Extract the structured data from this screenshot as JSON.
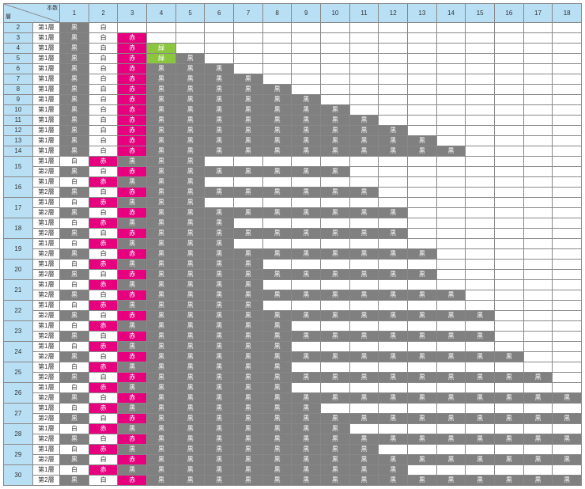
{
  "headers": {
    "corner_top": "本数",
    "corner_bottom": "層",
    "left": "線心数",
    "numbers": [
      "1",
      "2",
      "3",
      "4",
      "5",
      "6",
      "7",
      "8",
      "9",
      "10",
      "11",
      "12",
      "13",
      "14",
      "15",
      "16",
      "17",
      "18"
    ]
  },
  "legend": {
    "黒": {
      "bg": "#808080",
      "fg": "#ffffff"
    },
    "白": {
      "bg": "#ffffff",
      "fg": "#333333"
    },
    "赤": {
      "bg": "#e6007e",
      "fg": "#ffffff"
    },
    "緑": {
      "bg": "#8cc63f",
      "fg": "#ffffff"
    }
  },
  "layer_label_1": "第1層",
  "layer_label_2": "第2層",
  "groups": [
    {
      "id": "2",
      "rows": [
        {
          "layer": "第1層",
          "cells": [
            "黒",
            "白"
          ]
        }
      ]
    },
    {
      "id": "3",
      "rows": [
        {
          "layer": "第1層",
          "cells": [
            "黒",
            "白",
            "赤"
          ]
        }
      ]
    },
    {
      "id": "4",
      "rows": [
        {
          "layer": "第1層",
          "cells": [
            "黒",
            "白",
            "赤",
            "緑"
          ]
        }
      ]
    },
    {
      "id": "5",
      "rows": [
        {
          "layer": "第1層",
          "cells": [
            "黒",
            "白",
            "赤",
            "緑",
            "黒"
          ]
        }
      ]
    },
    {
      "id": "6",
      "rows": [
        {
          "layer": "第1層",
          "cells": [
            "黒",
            "白",
            "赤",
            "黒",
            "黒",
            "黒"
          ]
        }
      ]
    },
    {
      "id": "7",
      "rows": [
        {
          "layer": "第1層",
          "cells": [
            "黒",
            "白",
            "赤",
            "黒",
            "黒",
            "黒",
            "黒"
          ]
        }
      ]
    },
    {
      "id": "8",
      "rows": [
        {
          "layer": "第1層",
          "cells": [
            "黒",
            "白",
            "赤",
            "黒",
            "黒",
            "黒",
            "黒",
            "黒"
          ]
        }
      ]
    },
    {
      "id": "9",
      "rows": [
        {
          "layer": "第1層",
          "cells": [
            "黒",
            "白",
            "赤",
            "黒",
            "黒",
            "黒",
            "黒",
            "黒",
            "黒"
          ]
        }
      ]
    },
    {
      "id": "10",
      "rows": [
        {
          "layer": "第1層",
          "cells": [
            "黒",
            "白",
            "赤",
            "黒",
            "黒",
            "黒",
            "黒",
            "黒",
            "黒",
            "黒"
          ]
        }
      ]
    },
    {
      "id": "11",
      "rows": [
        {
          "layer": "第1層",
          "cells": [
            "黒",
            "白",
            "赤",
            "黒",
            "黒",
            "黒",
            "黒",
            "黒",
            "黒",
            "黒",
            "黒"
          ]
        }
      ]
    },
    {
      "id": "12",
      "rows": [
        {
          "layer": "第1層",
          "cells": [
            "黒",
            "白",
            "赤",
            "黒",
            "黒",
            "黒",
            "黒",
            "黒",
            "黒",
            "黒",
            "黒",
            "黒"
          ]
        }
      ]
    },
    {
      "id": "13",
      "rows": [
        {
          "layer": "第1層",
          "cells": [
            "黒",
            "白",
            "赤",
            "黒",
            "黒",
            "黒",
            "黒",
            "黒",
            "黒",
            "黒",
            "黒",
            "黒",
            "黒"
          ]
        }
      ]
    },
    {
      "id": "14",
      "rows": [
        {
          "layer": "第1層",
          "cells": [
            "黒",
            "白",
            "赤",
            "黒",
            "黒",
            "黒",
            "黒",
            "黒",
            "黒",
            "黒",
            "黒",
            "黒",
            "黒",
            "黒"
          ]
        }
      ]
    },
    {
      "id": "15",
      "rows": [
        {
          "layer": "第1層",
          "cells": [
            "白",
            "赤",
            "黒",
            "黒",
            "黒"
          ]
        },
        {
          "layer": "第2層",
          "cells": [
            "黒",
            "白",
            "赤",
            "黒",
            "黒",
            "黒",
            "黒",
            "黒",
            "黒",
            "黒"
          ]
        }
      ]
    },
    {
      "id": "16",
      "rows": [
        {
          "layer": "第1層",
          "cells": [
            "白",
            "赤",
            "黒",
            "黒",
            "黒"
          ]
        },
        {
          "layer": "第2層",
          "cells": [
            "黒",
            "白",
            "赤",
            "黒",
            "黒",
            "黒",
            "黒",
            "黒",
            "黒",
            "黒",
            "黒"
          ]
        }
      ]
    },
    {
      "id": "17",
      "rows": [
        {
          "layer": "第1層",
          "cells": [
            "白",
            "赤",
            "黒",
            "黒",
            "黒"
          ]
        },
        {
          "layer": "第2層",
          "cells": [
            "黒",
            "白",
            "赤",
            "黒",
            "黒",
            "黒",
            "黒",
            "黒",
            "黒",
            "黒",
            "黒",
            "黒"
          ]
        }
      ]
    },
    {
      "id": "18",
      "rows": [
        {
          "layer": "第1層",
          "cells": [
            "白",
            "赤",
            "黒",
            "黒",
            "黒",
            "黒"
          ]
        },
        {
          "layer": "第2層",
          "cells": [
            "黒",
            "白",
            "赤",
            "黒",
            "黒",
            "黒",
            "黒",
            "黒",
            "黒",
            "黒",
            "黒",
            "黒"
          ]
        }
      ]
    },
    {
      "id": "19",
      "rows": [
        {
          "layer": "第1層",
          "cells": [
            "白",
            "赤",
            "黒",
            "黒",
            "黒",
            "黒"
          ]
        },
        {
          "layer": "第2層",
          "cells": [
            "黒",
            "白",
            "赤",
            "黒",
            "黒",
            "黒",
            "黒",
            "黒",
            "黒",
            "黒",
            "黒",
            "黒",
            "黒"
          ]
        }
      ]
    },
    {
      "id": "20",
      "rows": [
        {
          "layer": "第1層",
          "cells": [
            "白",
            "赤",
            "黒",
            "黒",
            "黒",
            "黒",
            "黒"
          ]
        },
        {
          "layer": "第2層",
          "cells": [
            "黒",
            "白",
            "赤",
            "黒",
            "黒",
            "黒",
            "黒",
            "黒",
            "黒",
            "黒",
            "黒",
            "黒",
            "黒"
          ]
        }
      ]
    },
    {
      "id": "21",
      "rows": [
        {
          "layer": "第1層",
          "cells": [
            "白",
            "赤",
            "黒",
            "黒",
            "黒",
            "黒",
            "黒"
          ]
        },
        {
          "layer": "第2層",
          "cells": [
            "黒",
            "白",
            "赤",
            "黒",
            "黒",
            "黒",
            "黒",
            "黒",
            "黒",
            "黒",
            "黒",
            "黒",
            "黒",
            "黒"
          ]
        }
      ]
    },
    {
      "id": "22",
      "rows": [
        {
          "layer": "第1層",
          "cells": [
            "白",
            "赤",
            "黒",
            "黒",
            "黒",
            "黒",
            "黒"
          ]
        },
        {
          "layer": "第2層",
          "cells": [
            "黒",
            "白",
            "赤",
            "黒",
            "黒",
            "黒",
            "黒",
            "黒",
            "黒",
            "黒",
            "黒",
            "黒",
            "黒",
            "黒",
            "黒"
          ]
        }
      ]
    },
    {
      "id": "23",
      "rows": [
        {
          "layer": "第1層",
          "cells": [
            "白",
            "赤",
            "黒",
            "黒",
            "黒",
            "黒",
            "黒",
            "黒"
          ]
        },
        {
          "layer": "第2層",
          "cells": [
            "黒",
            "白",
            "赤",
            "黒",
            "黒",
            "黒",
            "黒",
            "黒",
            "黒",
            "黒",
            "黒",
            "黒",
            "黒",
            "黒",
            "黒"
          ]
        }
      ]
    },
    {
      "id": "24",
      "rows": [
        {
          "layer": "第1層",
          "cells": [
            "白",
            "赤",
            "黒",
            "黒",
            "黒",
            "黒",
            "黒",
            "黒"
          ]
        },
        {
          "layer": "第2層",
          "cells": [
            "黒",
            "白",
            "赤",
            "黒",
            "黒",
            "黒",
            "黒",
            "黒",
            "黒",
            "黒",
            "黒",
            "黒",
            "黒",
            "黒",
            "黒",
            "黒"
          ]
        }
      ]
    },
    {
      "id": "25",
      "rows": [
        {
          "layer": "第1層",
          "cells": [
            "白",
            "赤",
            "黒",
            "黒",
            "黒",
            "黒",
            "黒",
            "黒"
          ]
        },
        {
          "layer": "第2層",
          "cells": [
            "黒",
            "白",
            "赤",
            "黒",
            "黒",
            "黒",
            "黒",
            "黒",
            "黒",
            "黒",
            "黒",
            "黒",
            "黒",
            "黒",
            "黒",
            "黒",
            "黒"
          ]
        }
      ]
    },
    {
      "id": "26",
      "rows": [
        {
          "layer": "第1層",
          "cells": [
            "白",
            "赤",
            "黒",
            "黒",
            "黒",
            "黒",
            "黒",
            "黒"
          ]
        },
        {
          "layer": "第2層",
          "cells": [
            "黒",
            "白",
            "赤",
            "黒",
            "黒",
            "黒",
            "黒",
            "黒",
            "黒",
            "黒",
            "黒",
            "黒",
            "黒",
            "黒",
            "黒",
            "黒",
            "黒",
            "黒"
          ]
        }
      ]
    },
    {
      "id": "27",
      "rows": [
        {
          "layer": "第1層",
          "cells": [
            "白",
            "赤",
            "黒",
            "黒",
            "黒",
            "黒",
            "黒",
            "黒",
            "黒"
          ]
        },
        {
          "layer": "第2層",
          "cells": [
            "黒",
            "白",
            "赤",
            "黒",
            "黒",
            "黒",
            "黒",
            "黒",
            "黒",
            "黒",
            "黒",
            "黒",
            "黒",
            "黒",
            "黒",
            "黒",
            "黒",
            "黒"
          ]
        }
      ]
    },
    {
      "id": "28",
      "rows": [
        {
          "layer": "第1層",
          "cells": [
            "白",
            "赤",
            "黒",
            "黒",
            "黒",
            "黒",
            "黒",
            "黒",
            "黒",
            "黒"
          ]
        },
        {
          "layer": "第2層",
          "cells": [
            "黒",
            "白",
            "赤",
            "黒",
            "黒",
            "黒",
            "黒",
            "黒",
            "黒",
            "黒",
            "黒",
            "黒",
            "黒",
            "黒",
            "黒",
            "黒",
            "黒",
            "黒"
          ]
        }
      ]
    },
    {
      "id": "29",
      "rows": [
        {
          "layer": "第1層",
          "cells": [
            "白",
            "赤",
            "黒",
            "黒",
            "黒",
            "黒",
            "黒",
            "黒",
            "黒",
            "黒",
            "黒"
          ]
        },
        {
          "layer": "第2層",
          "cells": [
            "黒",
            "白",
            "赤",
            "黒",
            "黒",
            "黒",
            "黒",
            "黒",
            "黒",
            "黒",
            "黒",
            "黒",
            "黒",
            "黒",
            "黒",
            "黒",
            "黒",
            "黒"
          ]
        }
      ]
    },
    {
      "id": "30",
      "rows": [
        {
          "layer": "第1層",
          "cells": [
            "白",
            "赤",
            "黒",
            "黒",
            "黒",
            "黒",
            "黒",
            "黒",
            "黒",
            "黒",
            "黒",
            "黒"
          ]
        },
        {
          "layer": "第2層",
          "cells": [
            "黒",
            "白",
            "赤",
            "黒",
            "黒",
            "黒",
            "黒",
            "黒",
            "黒",
            "黒",
            "黒",
            "黒",
            "黒",
            "黒",
            "黒",
            "黒",
            "黒",
            "黒"
          ]
        }
      ]
    }
  ]
}
